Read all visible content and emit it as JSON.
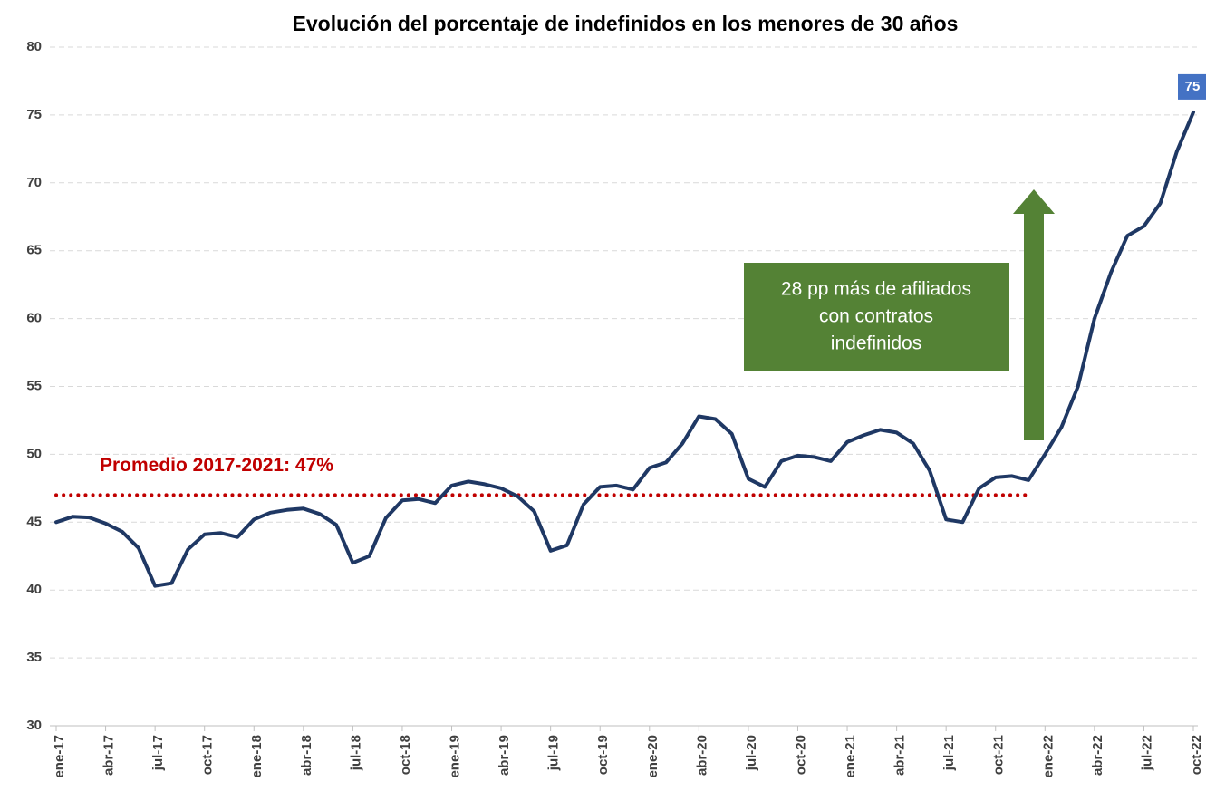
{
  "chart_data": {
    "type": "line",
    "title": "Evolución del porcentaje de indefinidos en los menores de 30 años",
    "categories": [
      "ene-17",
      null,
      null,
      "abr-17",
      null,
      null,
      "jul-17",
      null,
      null,
      "oct-17",
      null,
      null,
      "ene-18",
      null,
      null,
      "abr-18",
      null,
      null,
      "jul-18",
      null,
      null,
      "oct-18",
      null,
      null,
      "ene-19",
      null,
      null,
      "abr-19",
      null,
      null,
      "jul-19",
      null,
      null,
      "oct-19",
      null,
      null,
      "ene-20",
      null,
      null,
      "abr-20",
      null,
      null,
      "jul-20",
      null,
      null,
      "oct-20",
      null,
      null,
      "ene-21",
      null,
      null,
      "abr-21",
      null,
      null,
      "jul-21",
      null,
      null,
      "oct-21",
      null,
      null,
      "ene-22",
      null,
      null,
      "abr-22",
      null,
      null,
      "jul-22",
      null,
      null,
      "oct-22"
    ],
    "values": [
      45.0,
      45.4,
      45.35,
      44.9,
      44.3,
      43.1,
      40.3,
      40.5,
      43.0,
      44.1,
      44.2,
      43.9,
      45.2,
      45.7,
      45.9,
      46.0,
      45.6,
      44.8,
      42.0,
      42.5,
      45.3,
      46.6,
      46.7,
      46.4,
      47.7,
      48.0,
      47.8,
      47.5,
      46.9,
      45.8,
      42.9,
      43.3,
      46.3,
      47.6,
      47.7,
      47.4,
      49.0,
      49.4,
      50.8,
      52.8,
      52.6,
      51.5,
      48.2,
      47.6,
      49.5,
      49.9,
      49.8,
      49.5,
      50.9,
      51.4,
      51.8,
      51.6,
      50.8,
      48.8,
      45.2,
      45.0,
      47.5,
      48.3,
      48.4,
      48.1,
      50.0,
      52.0,
      55.0,
      60.0,
      63.4,
      66.1,
      66.8,
      68.5,
      72.3,
      75.2
    ],
    "value_labels": [
      null,
      null,
      null,
      null,
      null,
      null,
      null,
      null,
      null,
      null,
      null,
      null,
      null,
      null,
      null,
      null,
      null,
      null,
      null,
      null,
      null,
      null,
      null,
      null,
      null,
      null,
      null,
      null,
      null,
      null,
      null,
      null,
      null,
      null,
      null,
      null,
      null,
      null,
      null,
      null,
      null,
      null,
      null,
      null,
      null,
      null,
      null,
      null,
      null,
      null,
      null,
      null,
      null,
      null,
      null,
      null,
      null,
      null,
      null,
      null,
      null,
      null,
      null,
      null,
      null,
      null,
      null,
      null,
      null,
      "75"
    ],
    "color": "#1f3864",
    "ylim": [
      30,
      80
    ],
    "yticks": [
      30,
      35,
      40,
      45,
      50,
      55,
      60,
      65,
      70,
      75,
      80
    ],
    "grid": true,
    "average": {
      "value": 47,
      "label": "Promedio 2017-2021: 47%",
      "color": "#c00000"
    },
    "annotation": [
      "28 pp más de afiliados",
      "con contratos",
      "indefinidos"
    ]
  }
}
